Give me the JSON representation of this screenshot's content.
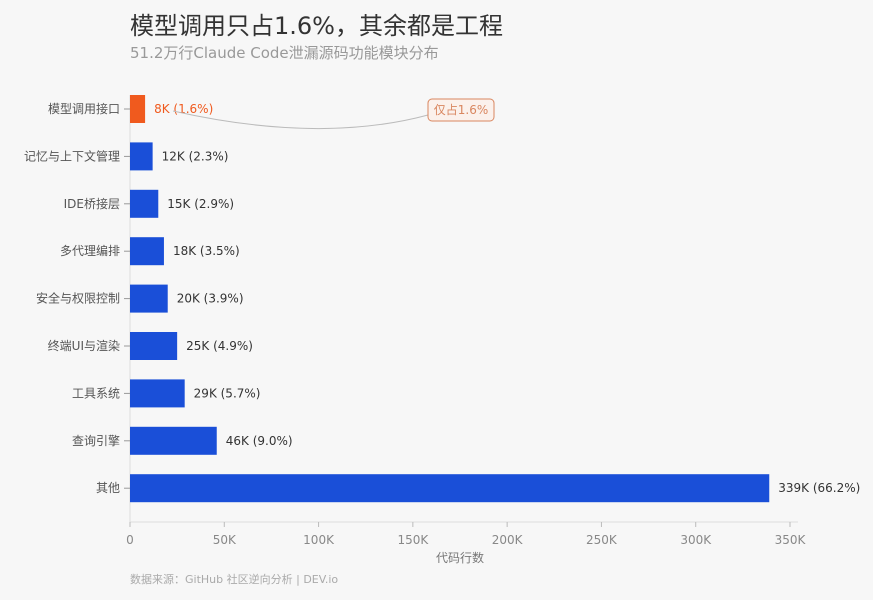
{
  "chart_data": {
    "type": "bar",
    "orientation": "horizontal",
    "title": "模型调用只占1.6%，其余都是工程",
    "subtitle": "51.2万行Claude Code泄漏源码功能模块分布",
    "xlabel": "代码行数",
    "xlim": [
      0,
      350000
    ],
    "xticks": [
      {
        "v": 0,
        "label": "0"
      },
      {
        "v": 50000,
        "label": "50K"
      },
      {
        "v": 100000,
        "label": "100K"
      },
      {
        "v": 150000,
        "label": "150K"
      },
      {
        "v": 200000,
        "label": "200K"
      },
      {
        "v": 250000,
        "label": "250K"
      },
      {
        "v": 300000,
        "label": "300K"
      },
      {
        "v": 350000,
        "label": "350K"
      }
    ],
    "categories": [
      "模型调用接口",
      "记忆与上下文管理",
      "IDE桥接层",
      "多代理编排",
      "安全与权限控制",
      "终端UI与渲染",
      "工具系统",
      "查询引擎",
      "其他"
    ],
    "values": [
      8000,
      12000,
      15000,
      18000,
      20000,
      25000,
      29000,
      46000,
      339000
    ],
    "data_labels": [
      "8K (1.6%)",
      "12K (2.3%)",
      "15K (2.9%)",
      "18K (3.5%)",
      "20K (3.9%)",
      "25K (4.9%)",
      "29K (5.7%)",
      "46K (9.0%)",
      "339K (66.2%)"
    ],
    "highlight_index": 0,
    "annotation": "仅占1.6%",
    "colors": {
      "default": "#1a4fd8",
      "highlight": "#f05a1e",
      "annotation": "#d9865f"
    },
    "grid": false,
    "source": "数据来源：GitHub 社区逆向分析 | DEV.io"
  }
}
